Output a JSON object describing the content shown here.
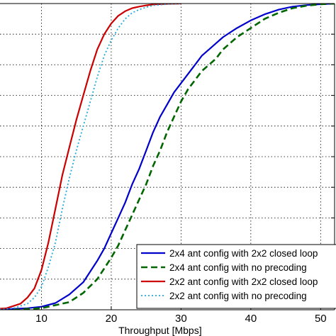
{
  "chart_data": {
    "type": "line",
    "xlabel": "Throughput [Mbps]",
    "ylabel": "",
    "xlim": [
      0,
      52
    ],
    "ylim": [
      0,
      1
    ],
    "x_ticks": [
      10,
      20,
      30,
      40,
      50
    ],
    "y_ticks": [
      0,
      0.1,
      0.2,
      0.3,
      0.4,
      0.5,
      0.6,
      0.7,
      0.8,
      0.9,
      1.0
    ],
    "grid": true,
    "legend_position": "bottom-right",
    "series": [
      {
        "name": "2x4 ant config with 2x2 closed loop",
        "color": "#0000cc",
        "style": "solid",
        "x": [
          2,
          5,
          8,
          10,
          12,
          14,
          16,
          18,
          19,
          20,
          21,
          22,
          23,
          24,
          25,
          26,
          27,
          28,
          29,
          30,
          31,
          32,
          33,
          34,
          35,
          36,
          37,
          38,
          40,
          42,
          44,
          46,
          48,
          50,
          52
        ],
        "y": [
          0,
          0.002,
          0.005,
          0.01,
          0.022,
          0.05,
          0.09,
          0.16,
          0.2,
          0.25,
          0.3,
          0.35,
          0.41,
          0.46,
          0.52,
          0.58,
          0.63,
          0.67,
          0.71,
          0.74,
          0.77,
          0.8,
          0.83,
          0.85,
          0.87,
          0.89,
          0.905,
          0.92,
          0.945,
          0.965,
          0.98,
          0.99,
          0.995,
          0.998,
          1.0
        ]
      },
      {
        "name": "2x4 ant config with no precoding",
        "color": "#006600",
        "style": "dashed",
        "x": [
          6,
          10,
          14,
          16,
          18,
          20,
          21,
          22,
          23,
          24,
          25,
          26,
          27,
          28,
          29,
          30,
          31,
          32,
          33,
          34,
          35,
          36,
          37,
          38,
          40,
          42,
          44,
          46,
          48,
          50,
          52
        ],
        "y": [
          0,
          0.005,
          0.025,
          0.055,
          0.1,
          0.17,
          0.21,
          0.26,
          0.31,
          0.36,
          0.41,
          0.47,
          0.52,
          0.58,
          0.63,
          0.68,
          0.72,
          0.75,
          0.78,
          0.8,
          0.82,
          0.85,
          0.87,
          0.89,
          0.92,
          0.95,
          0.97,
          0.985,
          0.993,
          0.998,
          1.0
        ]
      },
      {
        "name": "2x2 ant config with 2x2 closed loop",
        "color": "#cc0000",
        "style": "solid",
        "x": [
          2,
          5,
          7,
          8,
          9,
          10,
          11,
          12,
          13,
          14,
          15,
          16,
          17,
          18,
          19,
          20,
          21,
          22,
          23,
          24,
          25,
          26,
          28,
          30
        ],
        "y": [
          0,
          0.005,
          0.02,
          0.04,
          0.07,
          0.13,
          0.22,
          0.33,
          0.44,
          0.53,
          0.62,
          0.7,
          0.78,
          0.85,
          0.9,
          0.935,
          0.96,
          0.975,
          0.985,
          0.99,
          0.994,
          0.997,
          0.999,
          1.0
        ]
      },
      {
        "name": "2x2 ant config with no precoding",
        "color": "#22aadd",
        "style": "dotted",
        "x": [
          3,
          6,
          8,
          9,
          10,
          11,
          12,
          13,
          14,
          15,
          16,
          17,
          18,
          19,
          20,
          21,
          22,
          23,
          24,
          25,
          26,
          28,
          30
        ],
        "y": [
          0,
          0.005,
          0.02,
          0.04,
          0.075,
          0.14,
          0.22,
          0.33,
          0.43,
          0.52,
          0.6,
          0.68,
          0.76,
          0.83,
          0.88,
          0.92,
          0.95,
          0.97,
          0.98,
          0.988,
          0.994,
          0.998,
          1.0
        ]
      }
    ]
  }
}
